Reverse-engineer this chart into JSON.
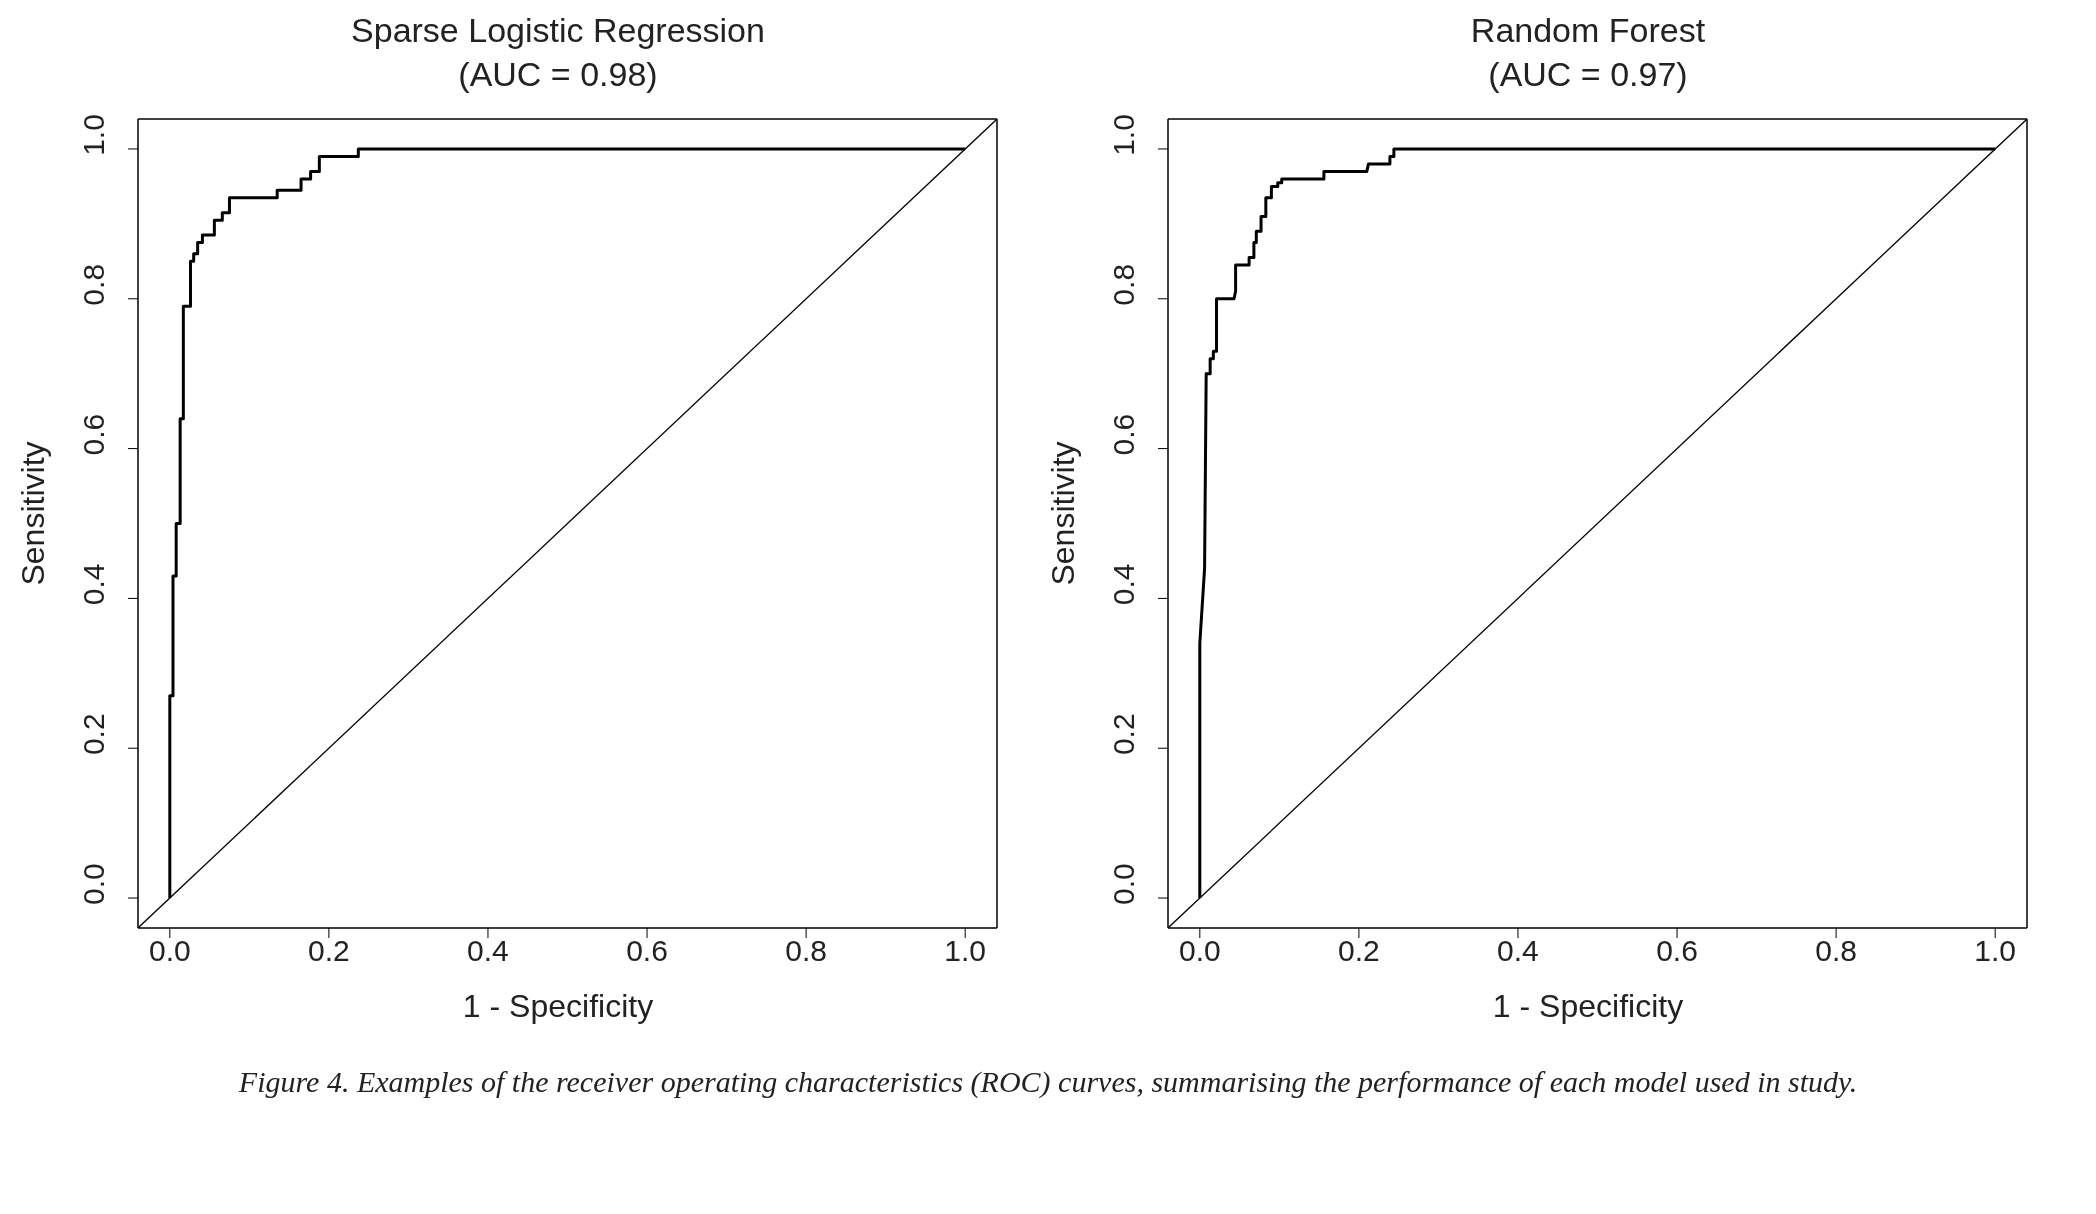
{
  "chart_data": [
    {
      "type": "line",
      "title": "Sparse Logistic Regression",
      "subtitle": "(AUC = 0.98)",
      "xlabel": "1 - Specificity",
      "ylabel": "Sensitivity",
      "xlim": [
        -0.04,
        1.04
      ],
      "ylim": [
        -0.04,
        1.04
      ],
      "xticks": [
        {
          "value": 0,
          "label": "0.0"
        },
        {
          "value": 0.2,
          "label": "0.2"
        },
        {
          "value": 0.4,
          "label": "0.4"
        },
        {
          "value": 0.6,
          "label": "0.6"
        },
        {
          "value": 0.8,
          "label": "0.8"
        },
        {
          "value": 1,
          "label": "1.0"
        }
      ],
      "yticks": [
        {
          "value": 0,
          "label": "0.0"
        },
        {
          "value": 0.2,
          "label": "0.2"
        },
        {
          "value": 0.4,
          "label": "0.4"
        },
        {
          "value": 0.6,
          "label": "0.6"
        },
        {
          "value": 0.8,
          "label": "0.8"
        },
        {
          "value": 1,
          "label": "1.0"
        }
      ],
      "marker": "none",
      "line_style": "solid",
      "series": [
        {
          "color": "#000000",
          "x": [
            0,
            0,
            0.004,
            0.004,
            0.008,
            0.008,
            0.013,
            0.013,
            0.017,
            0.017,
            0.026,
            0.026,
            0.03,
            0.03,
            0.035,
            0.035,
            0.041,
            0.041,
            0.056,
            0.056,
            0.066,
            0.066,
            0.075,
            0.075,
            0.135,
            0.135,
            0.165,
            0.165,
            0.177,
            0.177,
            0.188,
            0.188,
            0.237,
            0.237,
            1
          ],
          "values": [
            0,
            0.27,
            0.27,
            0.43,
            0.43,
            0.5,
            0.5,
            0.64,
            0.64,
            0.79,
            0.79,
            0.85,
            0.85,
            0.86,
            0.86,
            0.875,
            0.875,
            0.885,
            0.885,
            0.905,
            0.905,
            0.915,
            0.915,
            0.935,
            0.935,
            0.945,
            0.945,
            0.96,
            0.96,
            0.97,
            0.97,
            0.99,
            0.99,
            1,
            1
          ]
        },
        {
          "color": "#000000",
          "x": [
            -0.04,
            1.04
          ],
          "values": [
            -0.04,
            1.04
          ]
        }
      ]
    },
    {
      "type": "line",
      "title": "Random Forest",
      "subtitle": "(AUC = 0.97)",
      "xlabel": "1 - Specificity",
      "ylabel": "Sensitivity",
      "xlim": [
        -0.04,
        1.04
      ],
      "ylim": [
        -0.04,
        1.04
      ],
      "xticks": [
        {
          "value": 0,
          "label": "0.0"
        },
        {
          "value": 0.2,
          "label": "0.2"
        },
        {
          "value": 0.4,
          "label": "0.4"
        },
        {
          "value": 0.6,
          "label": "0.6"
        },
        {
          "value": 0.8,
          "label": "0.8"
        },
        {
          "value": 1,
          "label": "1.0"
        }
      ],
      "yticks": [
        {
          "value": 0,
          "label": "0.0"
        },
        {
          "value": 0.2,
          "label": "0.2"
        },
        {
          "value": 0.4,
          "label": "0.4"
        },
        {
          "value": 0.6,
          "label": "0.6"
        },
        {
          "value": 0.8,
          "label": "0.8"
        },
        {
          "value": 1,
          "label": "1.0"
        }
      ],
      "marker": "none",
      "line_style": "solid",
      "annotations": [
        "Figure 4. Examples of the receiver operating characteristics (ROC) curves, summarising the performance of each model used in study."
      ],
      "series": [
        {
          "color": "#000000",
          "x": [
            0,
            0,
            0.006,
            0.008,
            0.013,
            0.013,
            0.017,
            0.017,
            0.021,
            0.021,
            0.043,
            0.045,
            0.045,
            0.062,
            0.062,
            0.068,
            0.068,
            0.071,
            0.071,
            0.077,
            0.077,
            0.083,
            0.083,
            0.09,
            0.09,
            0.098,
            0.098,
            0.103,
            0.103,
            0.156,
            0.156,
            0.21,
            0.212,
            0.239,
            0.239,
            0.244,
            0.244,
            0.252,
            1
          ],
          "values": [
            0,
            0.34,
            0.44,
            0.7,
            0.7,
            0.72,
            0.72,
            0.73,
            0.73,
            0.8,
            0.8,
            0.81,
            0.845,
            0.845,
            0.855,
            0.855,
            0.875,
            0.875,
            0.89,
            0.89,
            0.91,
            0.91,
            0.935,
            0.935,
            0.95,
            0.95,
            0.955,
            0.955,
            0.96,
            0.96,
            0.97,
            0.97,
            0.98,
            0.98,
            0.99,
            0.99,
            1,
            1,
            1
          ]
        },
        {
          "color": "#000000",
          "x": [
            -0.04,
            1.04
          ],
          "values": [
            -0.04,
            1.04
          ]
        }
      ]
    }
  ]
}
